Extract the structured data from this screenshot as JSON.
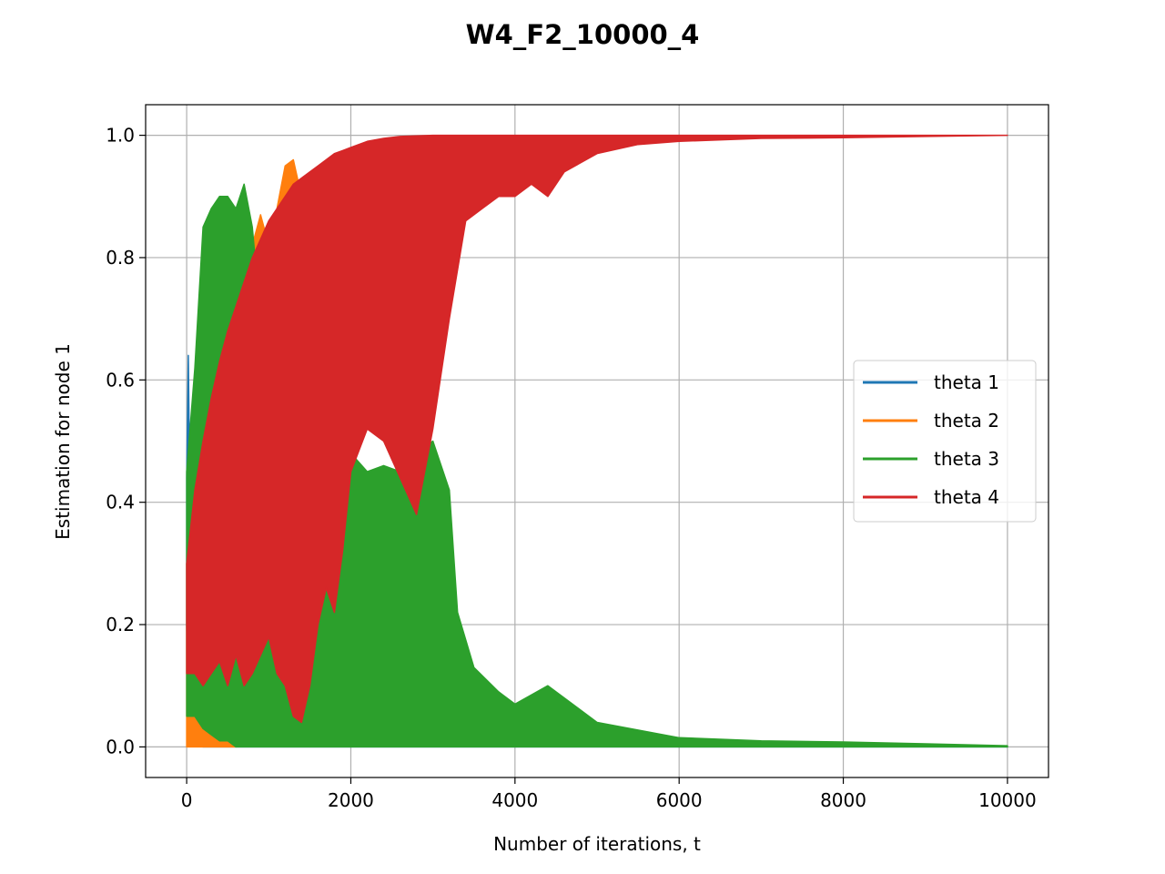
{
  "chart_data": {
    "type": "line",
    "title": "W4_F2_10000_4",
    "xlabel": "Number of iterations, t",
    "ylabel": "Estimation for node 1",
    "xlim": [
      -500,
      10500
    ],
    "ylim": [
      -0.05,
      1.05
    ],
    "xticks": [
      0,
      2000,
      4000,
      6000,
      8000,
      10000
    ],
    "xtick_labels": [
      "0",
      "2000",
      "4000",
      "6000",
      "8000",
      "10000"
    ],
    "yticks": [
      0.0,
      0.2,
      0.4,
      0.6,
      0.8,
      1.0
    ],
    "ytick_labels": [
      "0.0",
      "0.2",
      "0.4",
      "0.6",
      "0.8",
      "1.0"
    ],
    "grid": true,
    "legend_position": "center-right",
    "series": [
      {
        "name": "theta 1",
        "color": "#1f77b4",
        "style": "band",
        "x": [
          0,
          20,
          40,
          60,
          80,
          100,
          150,
          200,
          300,
          400,
          600,
          1000,
          10000
        ],
        "upper": [
          0.44,
          0.64,
          0.4,
          0.16,
          0.1,
          0.08,
          0.04,
          0.02,
          0.01,
          0.005,
          0.002,
          0.0,
          0.0
        ],
        "lower": [
          0.2,
          0.05,
          0.03,
          0.02,
          0.01,
          0.005,
          0.002,
          0.0,
          0.0,
          0.0,
          0.0,
          0.0,
          0.0
        ]
      },
      {
        "name": "theta 2",
        "color": "#ff7f0e",
        "style": "band",
        "x": [
          0,
          200,
          400,
          600,
          700,
          800,
          900,
          1000,
          1100,
          1200,
          1300,
          1400,
          1500
        ],
        "upper": [
          0.3,
          0.1,
          0.04,
          0.02,
          0.7,
          0.82,
          0.87,
          0.82,
          0.88,
          0.95,
          0.96,
          0.9,
          0.0
        ],
        "lower": [
          0.0,
          0.0,
          0.0,
          0.0,
          0.6,
          0.75,
          0.78,
          0.76,
          0.82,
          0.88,
          0.9,
          0.85,
          0.0
        ]
      },
      {
        "name": "theta 3",
        "color": "#2ca02c",
        "style": "band",
        "x": [
          0,
          100,
          200,
          300,
          400,
          500,
          600,
          700,
          800,
          900,
          1000,
          1100,
          1200,
          1300,
          1400,
          1500,
          1600,
          1700,
          1800,
          1900,
          2000,
          2200,
          2400,
          2600,
          2800,
          3000,
          3200,
          3300,
          3500,
          3800,
          4000,
          4400,
          5000,
          6000,
          7000,
          8000,
          9000,
          10000
        ],
        "upper": [
          0.45,
          0.62,
          0.85,
          0.88,
          0.9,
          0.9,
          0.88,
          0.92,
          0.85,
          0.7,
          0.62,
          0.55,
          0.58,
          0.55,
          0.52,
          0.52,
          0.32,
          0.38,
          0.42,
          0.52,
          0.48,
          0.45,
          0.46,
          0.45,
          0.48,
          0.5,
          0.42,
          0.22,
          0.13,
          0.09,
          0.07,
          0.1,
          0.04,
          0.015,
          0.01,
          0.008,
          0.005,
          0.002
        ],
        "lower": [
          0.05,
          0.05,
          0.03,
          0.02,
          0.01,
          0.01,
          0.0,
          0.0,
          0.0,
          0.0,
          0.0,
          0.0,
          0.0,
          0.0,
          0.0,
          0.0,
          0.0,
          0.0,
          0.0,
          0.0,
          0.0,
          0.0,
          0.0,
          0.0,
          0.0,
          0.0,
          0.0,
          0.0,
          0.0,
          0.0,
          0.0,
          0.0,
          0.0,
          0.0,
          0.0,
          0.0,
          0.0,
          0.0
        ]
      },
      {
        "name": "theta 4",
        "color": "#d62728",
        "style": "band",
        "x": [
          0,
          100,
          200,
          300,
          400,
          500,
          600,
          700,
          800,
          900,
          1000,
          1100,
          1200,
          1300,
          1400,
          1500,
          1600,
          1700,
          1800,
          1900,
          2000,
          2200,
          2400,
          2600,
          2800,
          3000,
          3200,
          3400,
          3600,
          3800,
          4000,
          4200,
          4400,
          4600,
          5000,
          5500,
          6000,
          7000,
          8000,
          9000,
          10000
        ],
        "upper": [
          0.3,
          0.42,
          0.5,
          0.57,
          0.63,
          0.68,
          0.72,
          0.76,
          0.8,
          0.83,
          0.86,
          0.88,
          0.9,
          0.92,
          0.93,
          0.94,
          0.95,
          0.96,
          0.97,
          0.975,
          0.98,
          0.99,
          0.995,
          0.998,
          0.999,
          1.0,
          1.0,
          1.0,
          1.0,
          1.0,
          1.0,
          1.0,
          1.0,
          1.0,
          1.0,
          1.0,
          1.0,
          1.0,
          1.0,
          1.0,
          1.0
        ],
        "lower": [
          0.12,
          0.12,
          0.1,
          0.12,
          0.14,
          0.1,
          0.15,
          0.1,
          0.12,
          0.15,
          0.18,
          0.12,
          0.1,
          0.05,
          0.04,
          0.1,
          0.2,
          0.26,
          0.22,
          0.32,
          0.45,
          0.52,
          0.5,
          0.44,
          0.38,
          0.52,
          0.7,
          0.86,
          0.88,
          0.9,
          0.9,
          0.92,
          0.9,
          0.94,
          0.97,
          0.985,
          0.99,
          0.995,
          0.996,
          0.998,
          1.0
        ]
      }
    ]
  }
}
